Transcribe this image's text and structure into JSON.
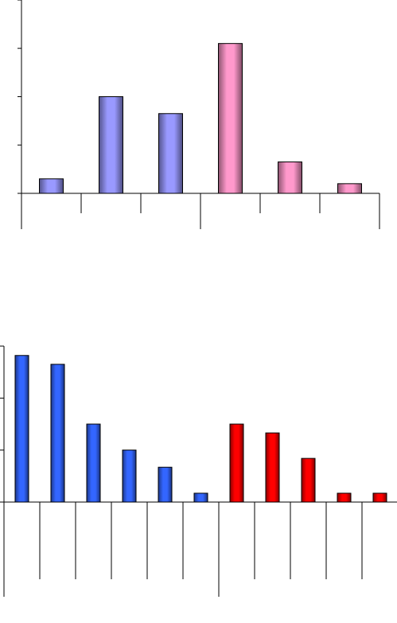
{
  "chart_data": [
    {
      "type": "bar",
      "categories": [
        null,
        null,
        null,
        null,
        null,
        null
      ],
      "values": [
        0.3,
        2.0,
        1.65,
        3.1,
        0.65,
        0.2
      ],
      "colors": [
        "#9999ff",
        "#9999ff",
        "#9999ff",
        "#ff99cc",
        "#ff99cc",
        "#ff99cc"
      ],
      "ylim": [
        0,
        4
      ],
      "yticks": [
        0,
        1,
        2,
        3,
        4
      ],
      "grid": false
    },
    {
      "type": "bar",
      "categories": [
        null,
        null,
        null,
        null,
        null,
        null,
        null,
        null,
        null,
        null,
        null
      ],
      "values": [
        2.82,
        2.65,
        1.5,
        1.0,
        0.67,
        0.17,
        1.5,
        1.33,
        0.84,
        0.17,
        0.17
      ],
      "colors": [
        "#3366ff",
        "#3366ff",
        "#3366ff",
        "#3366ff",
        "#3366ff",
        "#3366ff",
        "#ff0000",
        "#ff0000",
        "#ff0000",
        "#ff0000",
        "#ff0000"
      ],
      "ylim": [
        0,
        3
      ],
      "yticks": [
        0,
        1,
        2,
        3
      ],
      "grid": false
    }
  ]
}
